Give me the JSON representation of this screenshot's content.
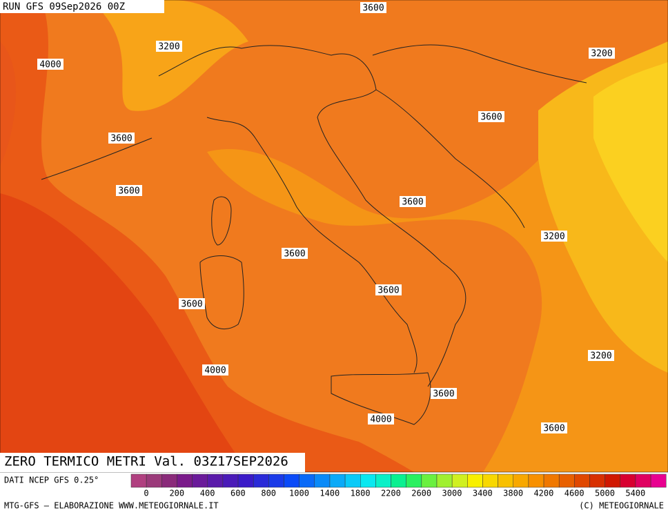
{
  "header": {
    "run": "RUN GFS 09Sep2026 00Z"
  },
  "map": {
    "contour_labels": [
      "3600",
      "3200",
      "4000",
      "3200",
      "3600",
      "3600",
      "3600",
      "3600",
      "3200",
      "3600",
      "3600",
      "3600",
      "3200",
      "4000",
      "3600",
      "4000",
      "3600"
    ],
    "title": "ZERO TERMICO METRI Val. 03Z17SEP2026"
  },
  "colorbar": {
    "labels": [
      "0",
      "200",
      "400",
      "600",
      "800",
      "1000",
      "1400",
      "1800",
      "2200",
      "2600",
      "3000",
      "3400",
      "3800",
      "4200",
      "4600",
      "5000",
      "5400"
    ],
    "colors": [
      "#b04080",
      "#9b3a7a",
      "#8a2a7a",
      "#7a1a8a",
      "#6a1a9a",
      "#5a1aaa",
      "#4a1ab8",
      "#3a1ac8",
      "#2a2ad8",
      "#1a3ae8",
      "#0a4af8",
      "#0a6af8",
      "#0a8af8",
      "#0aaaf8",
      "#0acaf8",
      "#0ae8f0",
      "#0af0c8",
      "#0af090",
      "#2af060",
      "#6af040",
      "#a0f030",
      "#d0f020",
      "#f8f000",
      "#f8d800",
      "#f8c000",
      "#f8a800",
      "#f89000",
      "#f07800",
      "#e86000",
      "#e04800",
      "#d83000",
      "#d01800",
      "#d80030",
      "#e00060",
      "#e80090"
    ]
  },
  "footer": {
    "source": "DATI NCEP GFS 0.25°",
    "credit": "MTG-GFS — ELABORAZIONE WWW.METEOGIORNALE.IT",
    "copyright": "(C) METEOGIORNALE"
  }
}
